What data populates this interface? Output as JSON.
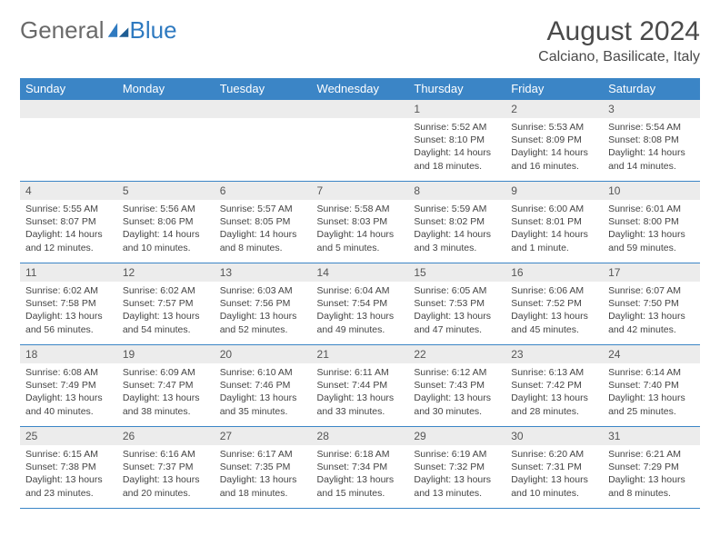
{
  "brand": {
    "part1": "General",
    "part2": "Blue"
  },
  "title": "August 2024",
  "location": "Calciano, Basilicate, Italy",
  "accent_color": "#3b85c6",
  "band_color": "#ececec",
  "day_headers": [
    "Sunday",
    "Monday",
    "Tuesday",
    "Wednesday",
    "Thursday",
    "Friday",
    "Saturday"
  ],
  "weeks": [
    [
      {
        "n": "",
        "lines": []
      },
      {
        "n": "",
        "lines": []
      },
      {
        "n": "",
        "lines": []
      },
      {
        "n": "",
        "lines": []
      },
      {
        "n": "1",
        "lines": [
          "Sunrise: 5:52 AM",
          "Sunset: 8:10 PM",
          "Daylight: 14 hours and 18 minutes."
        ]
      },
      {
        "n": "2",
        "lines": [
          "Sunrise: 5:53 AM",
          "Sunset: 8:09 PM",
          "Daylight: 14 hours and 16 minutes."
        ]
      },
      {
        "n": "3",
        "lines": [
          "Sunrise: 5:54 AM",
          "Sunset: 8:08 PM",
          "Daylight: 14 hours and 14 minutes."
        ]
      }
    ],
    [
      {
        "n": "4",
        "lines": [
          "Sunrise: 5:55 AM",
          "Sunset: 8:07 PM",
          "Daylight: 14 hours and 12 minutes."
        ]
      },
      {
        "n": "5",
        "lines": [
          "Sunrise: 5:56 AM",
          "Sunset: 8:06 PM",
          "Daylight: 14 hours and 10 minutes."
        ]
      },
      {
        "n": "6",
        "lines": [
          "Sunrise: 5:57 AM",
          "Sunset: 8:05 PM",
          "Daylight: 14 hours and 8 minutes."
        ]
      },
      {
        "n": "7",
        "lines": [
          "Sunrise: 5:58 AM",
          "Sunset: 8:03 PM",
          "Daylight: 14 hours and 5 minutes."
        ]
      },
      {
        "n": "8",
        "lines": [
          "Sunrise: 5:59 AM",
          "Sunset: 8:02 PM",
          "Daylight: 14 hours and 3 minutes."
        ]
      },
      {
        "n": "9",
        "lines": [
          "Sunrise: 6:00 AM",
          "Sunset: 8:01 PM",
          "Daylight: 14 hours and 1 minute."
        ]
      },
      {
        "n": "10",
        "lines": [
          "Sunrise: 6:01 AM",
          "Sunset: 8:00 PM",
          "Daylight: 13 hours and 59 minutes."
        ]
      }
    ],
    [
      {
        "n": "11",
        "lines": [
          "Sunrise: 6:02 AM",
          "Sunset: 7:58 PM",
          "Daylight: 13 hours and 56 minutes."
        ]
      },
      {
        "n": "12",
        "lines": [
          "Sunrise: 6:02 AM",
          "Sunset: 7:57 PM",
          "Daylight: 13 hours and 54 minutes."
        ]
      },
      {
        "n": "13",
        "lines": [
          "Sunrise: 6:03 AM",
          "Sunset: 7:56 PM",
          "Daylight: 13 hours and 52 minutes."
        ]
      },
      {
        "n": "14",
        "lines": [
          "Sunrise: 6:04 AM",
          "Sunset: 7:54 PM",
          "Daylight: 13 hours and 49 minutes."
        ]
      },
      {
        "n": "15",
        "lines": [
          "Sunrise: 6:05 AM",
          "Sunset: 7:53 PM",
          "Daylight: 13 hours and 47 minutes."
        ]
      },
      {
        "n": "16",
        "lines": [
          "Sunrise: 6:06 AM",
          "Sunset: 7:52 PM",
          "Daylight: 13 hours and 45 minutes."
        ]
      },
      {
        "n": "17",
        "lines": [
          "Sunrise: 6:07 AM",
          "Sunset: 7:50 PM",
          "Daylight: 13 hours and 42 minutes."
        ]
      }
    ],
    [
      {
        "n": "18",
        "lines": [
          "Sunrise: 6:08 AM",
          "Sunset: 7:49 PM",
          "Daylight: 13 hours and 40 minutes."
        ]
      },
      {
        "n": "19",
        "lines": [
          "Sunrise: 6:09 AM",
          "Sunset: 7:47 PM",
          "Daylight: 13 hours and 38 minutes."
        ]
      },
      {
        "n": "20",
        "lines": [
          "Sunrise: 6:10 AM",
          "Sunset: 7:46 PM",
          "Daylight: 13 hours and 35 minutes."
        ]
      },
      {
        "n": "21",
        "lines": [
          "Sunrise: 6:11 AM",
          "Sunset: 7:44 PM",
          "Daylight: 13 hours and 33 minutes."
        ]
      },
      {
        "n": "22",
        "lines": [
          "Sunrise: 6:12 AM",
          "Sunset: 7:43 PM",
          "Daylight: 13 hours and 30 minutes."
        ]
      },
      {
        "n": "23",
        "lines": [
          "Sunrise: 6:13 AM",
          "Sunset: 7:42 PM",
          "Daylight: 13 hours and 28 minutes."
        ]
      },
      {
        "n": "24",
        "lines": [
          "Sunrise: 6:14 AM",
          "Sunset: 7:40 PM",
          "Daylight: 13 hours and 25 minutes."
        ]
      }
    ],
    [
      {
        "n": "25",
        "lines": [
          "Sunrise: 6:15 AM",
          "Sunset: 7:38 PM",
          "Daylight: 13 hours and 23 minutes."
        ]
      },
      {
        "n": "26",
        "lines": [
          "Sunrise: 6:16 AM",
          "Sunset: 7:37 PM",
          "Daylight: 13 hours and 20 minutes."
        ]
      },
      {
        "n": "27",
        "lines": [
          "Sunrise: 6:17 AM",
          "Sunset: 7:35 PM",
          "Daylight: 13 hours and 18 minutes."
        ]
      },
      {
        "n": "28",
        "lines": [
          "Sunrise: 6:18 AM",
          "Sunset: 7:34 PM",
          "Daylight: 13 hours and 15 minutes."
        ]
      },
      {
        "n": "29",
        "lines": [
          "Sunrise: 6:19 AM",
          "Sunset: 7:32 PM",
          "Daylight: 13 hours and 13 minutes."
        ]
      },
      {
        "n": "30",
        "lines": [
          "Sunrise: 6:20 AM",
          "Sunset: 7:31 PM",
          "Daylight: 13 hours and 10 minutes."
        ]
      },
      {
        "n": "31",
        "lines": [
          "Sunrise: 6:21 AM",
          "Sunset: 7:29 PM",
          "Daylight: 13 hours and 8 minutes."
        ]
      }
    ]
  ]
}
